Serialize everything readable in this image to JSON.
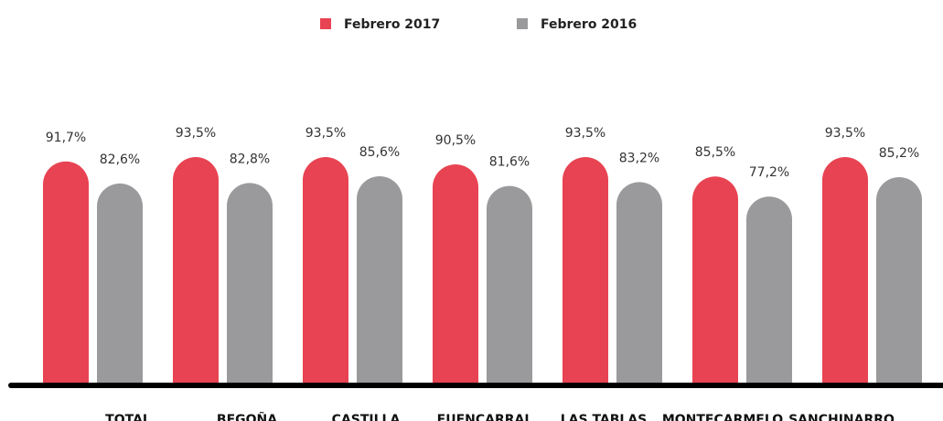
{
  "chart_data": {
    "type": "bar",
    "categories": [
      "TOTAL",
      "BEGOÑA",
      "CASTILLA",
      "FUENCARRAL",
      "LAS TABLAS",
      "MONTECARMELO",
      "SANCHINARRO"
    ],
    "series": [
      {
        "name": "Febrero 2017",
        "color": "#e84352",
        "values": [
          91.7,
          93.5,
          93.5,
          90.5,
          93.5,
          85.5,
          93.5
        ],
        "value_labels": [
          "91,7%",
          "93,5%",
          "93,5%",
          "90,5%",
          "93,5%",
          "85,5%",
          "93,5%"
        ]
      },
      {
        "name": "Febrero 2016",
        "color": "#9a9a9c",
        "values": [
          82.6,
          82.8,
          85.6,
          81.6,
          83.2,
          77.2,
          85.2
        ],
        "value_labels": [
          "82,6%",
          "82,8%",
          "85,6%",
          "81,6%",
          "83,2%",
          "77,2%",
          "85,2%"
        ]
      }
    ],
    "legend": "top"
  }
}
